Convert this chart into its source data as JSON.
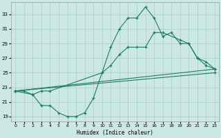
{
  "xlabel": "Humidex (Indice chaleur)",
  "background_color": "#cce8e2",
  "grid_color": "#aaccca",
  "line_color": "#1a7a6a",
  "xlim": [
    -0.5,
    23.5
  ],
  "ylim": [
    18.3,
    34.7
  ],
  "xticks": [
    0,
    1,
    2,
    3,
    4,
    5,
    6,
    7,
    8,
    9,
    10,
    11,
    12,
    13,
    14,
    15,
    16,
    17,
    18,
    19,
    20,
    21,
    22,
    23
  ],
  "yticks": [
    19,
    21,
    23,
    25,
    27,
    29,
    31,
    33
  ],
  "curve1_x": [
    0,
    1,
    2,
    3,
    4,
    5,
    6,
    7,
    8,
    9,
    10,
    11,
    12,
    13,
    14,
    15,
    16,
    17,
    18,
    19,
    20,
    21,
    22,
    23
  ],
  "curve1_y": [
    22.5,
    22.5,
    22.0,
    20.5,
    20.5,
    19.5,
    19.0,
    19.0,
    19.5,
    21.5,
    25.0,
    28.5,
    31.0,
    32.5,
    32.5,
    34.0,
    32.5,
    30.0,
    30.5,
    29.0,
    29.0,
    27.0,
    26.0,
    25.5
  ],
  "curve2_x": [
    0,
    2,
    3,
    4,
    10,
    11,
    12,
    13,
    14,
    15,
    16,
    17,
    19,
    20,
    21,
    22,
    23
  ],
  "curve2_y": [
    22.5,
    22.0,
    22.5,
    22.5,
    25.0,
    26.0,
    27.5,
    28.5,
    28.5,
    28.5,
    30.5,
    30.5,
    29.5,
    29.0,
    27.0,
    26.5,
    25.5
  ],
  "line3_x": [
    0,
    23
  ],
  "line3_y": [
    22.5,
    25.5
  ],
  "line4_x": [
    0,
    23
  ],
  "line4_y": [
    22.5,
    25.0
  ]
}
